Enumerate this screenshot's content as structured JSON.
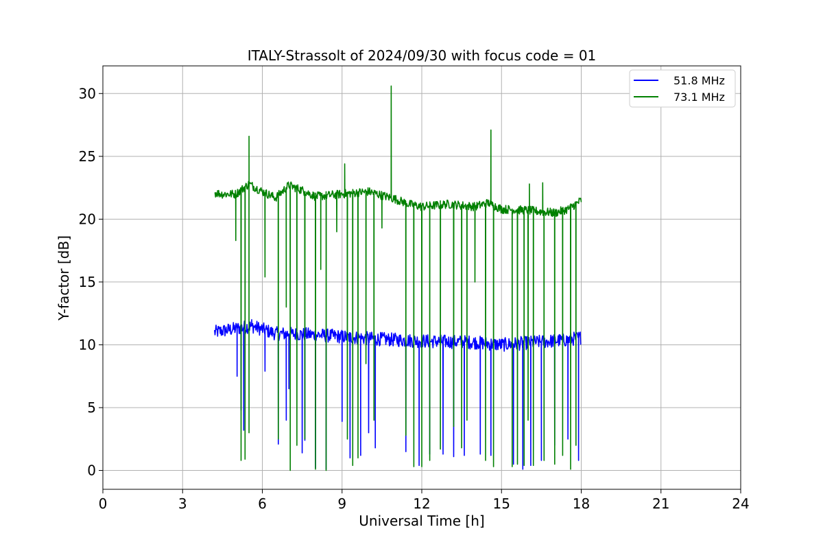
{
  "chart_data": {
    "type": "line",
    "title": "ITALY-Strassolt of 2024/09/30 with focus code = 01",
    "xlabel": "Universal Time [h]",
    "ylabel": "Y-factor [dB]",
    "xlim": [
      0,
      24
    ],
    "ylim": [
      -1.5,
      32.2
    ],
    "xticks": [
      0,
      3,
      6,
      9,
      12,
      15,
      18,
      21,
      24
    ],
    "yticks": [
      0,
      5,
      10,
      15,
      20,
      25,
      30
    ],
    "grid": true,
    "legend_position": "top-right",
    "series": [
      {
        "name": "51.8 MHz",
        "color": "#0000ff",
        "baseline": [
          [
            4.2,
            11.0
          ],
          [
            5.6,
            11.5
          ],
          [
            6.5,
            10.9
          ],
          [
            8.0,
            10.8
          ],
          [
            10.0,
            10.5
          ],
          [
            12.0,
            10.3
          ],
          [
            14.0,
            10.2
          ],
          [
            15.0,
            10.0
          ],
          [
            17.5,
            10.4
          ],
          [
            18.0,
            10.6
          ]
        ],
        "dips": [
          [
            5.05,
            7.5
          ],
          [
            5.2,
            4.8
          ],
          [
            5.3,
            3.2
          ],
          [
            6.1,
            7.9
          ],
          [
            6.6,
            2.1
          ],
          [
            6.9,
            4.0
          ],
          [
            7.0,
            6.5
          ],
          [
            7.5,
            1.4
          ],
          [
            7.6,
            2.4
          ],
          [
            8.0,
            0.2
          ],
          [
            8.4,
            0.1
          ],
          [
            9.0,
            3.9
          ],
          [
            9.3,
            1.0
          ],
          [
            9.7,
            1.2
          ],
          [
            10.0,
            3.0
          ],
          [
            10.25,
            1.8
          ],
          [
            11.4,
            1.5
          ],
          [
            11.9,
            0.4
          ],
          [
            12.3,
            1.3
          ],
          [
            12.8,
            1.3
          ],
          [
            13.2,
            1.1
          ],
          [
            13.6,
            1.2
          ],
          [
            14.2,
            1.3
          ],
          [
            14.6,
            1.2
          ],
          [
            15.45,
            0.5
          ],
          [
            15.8,
            0.1
          ],
          [
            16.1,
            0.4
          ],
          [
            16.5,
            0.8
          ],
          [
            17.0,
            2.0
          ],
          [
            17.5,
            2.5
          ],
          [
            17.9,
            0.8
          ]
        ],
        "spikes": [
          [
            5.6,
            12.0
          ]
        ]
      },
      {
        "name": "73.1 MHz",
        "color": "#008000",
        "baseline": [
          [
            4.2,
            22.1
          ],
          [
            4.5,
            22.0
          ],
          [
            5.0,
            22.0
          ],
          [
            5.5,
            22.8
          ],
          [
            6.0,
            22.2
          ],
          [
            6.5,
            21.7
          ],
          [
            7.0,
            22.7
          ],
          [
            7.5,
            22.3
          ],
          [
            8.0,
            21.8
          ],
          [
            9.0,
            22.0
          ],
          [
            10.0,
            22.2
          ],
          [
            11.0,
            21.6
          ],
          [
            11.5,
            21.2
          ],
          [
            12.0,
            21.0
          ],
          [
            13.0,
            21.2
          ],
          [
            14.0,
            21.0
          ],
          [
            14.5,
            21.3
          ],
          [
            15.0,
            20.8
          ],
          [
            16.0,
            20.7
          ],
          [
            17.0,
            20.5
          ],
          [
            17.5,
            20.8
          ],
          [
            18.0,
            21.5
          ]
        ],
        "dips": [
          [
            5.0,
            18.3
          ],
          [
            5.2,
            0.8
          ],
          [
            5.35,
            0.9
          ],
          [
            5.5,
            3.0
          ],
          [
            6.1,
            15.4
          ],
          [
            6.6,
            2.5
          ],
          [
            6.9,
            13.0
          ],
          [
            7.05,
            0.0
          ],
          [
            7.3,
            2.0
          ],
          [
            7.6,
            2.5
          ],
          [
            8.0,
            0.1
          ],
          [
            8.2,
            16.0
          ],
          [
            8.4,
            0.0
          ],
          [
            8.8,
            19.0
          ],
          [
            9.2,
            2.5
          ],
          [
            9.4,
            0.4
          ],
          [
            9.6,
            1.0
          ],
          [
            9.9,
            8.5
          ],
          [
            10.2,
            4.0
          ],
          [
            10.5,
            19.3
          ],
          [
            11.4,
            2.8
          ],
          [
            11.7,
            0.3
          ],
          [
            12.0,
            0.3
          ],
          [
            12.3,
            0.8
          ],
          [
            12.7,
            1.7
          ],
          [
            13.2,
            3.5
          ],
          [
            13.5,
            1.8
          ],
          [
            13.7,
            4.0
          ],
          [
            14.0,
            15.0
          ],
          [
            14.4,
            0.8
          ],
          [
            14.7,
            0.3
          ],
          [
            15.4,
            0.3
          ],
          [
            15.6,
            0.5
          ],
          [
            15.85,
            0.4
          ],
          [
            16.0,
            4.0
          ],
          [
            16.2,
            0.4
          ],
          [
            16.6,
            0.8
          ],
          [
            17.0,
            0.5
          ],
          [
            17.3,
            1.2
          ],
          [
            17.6,
            0.1
          ],
          [
            17.8,
            2.0
          ]
        ],
        "spikes": [
          [
            5.5,
            26.6
          ],
          [
            9.1,
            24.4
          ],
          [
            10.85,
            30.6
          ],
          [
            14.6,
            27.1
          ],
          [
            16.05,
            22.8
          ],
          [
            16.55,
            22.9
          ]
        ]
      }
    ]
  }
}
